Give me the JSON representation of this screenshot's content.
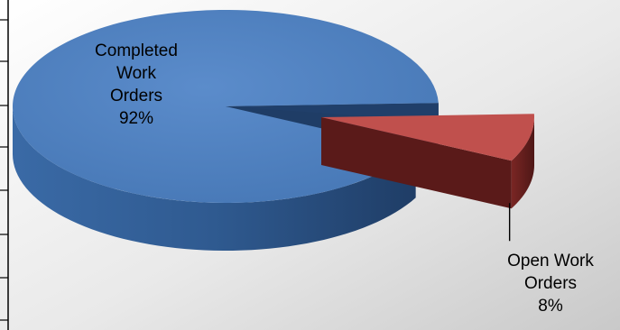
{
  "chart_data": {
    "type": "pie",
    "title": "",
    "categories": [
      "Completed Work Orders",
      "Open Work Orders"
    ],
    "values": [
      92,
      8
    ],
    "unit": "%",
    "labels": [
      {
        "name_lines": [
          "Completed",
          "Work",
          "Orders"
        ],
        "value_text": "92%"
      },
      {
        "name_lines": [
          "Open Work",
          "Orders"
        ],
        "value_text": "8%"
      }
    ],
    "legend": "none",
    "exploded_slice": "Open Work Orders",
    "colors": {
      "completed_top": "#4f81bd",
      "completed_side": "#2c4f7c",
      "open_top": "#c0504d",
      "open_side": "#6b1f1d",
      "background": "#d9d9d9"
    }
  }
}
